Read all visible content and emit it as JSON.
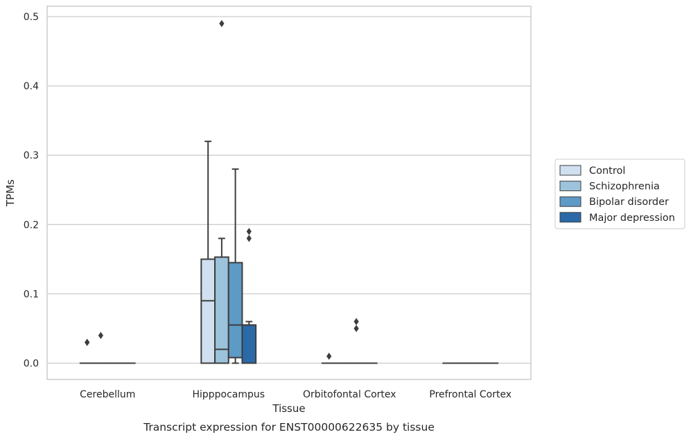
{
  "chart_data": {
    "type": "box",
    "title": "",
    "caption": "Transcript expression for ENST00000622635 by tissue",
    "xlabel": "Tissue",
    "ylabel": "TPMs",
    "ylim": [
      -0.0235,
      0.515
    ],
    "yticks": [
      "0.0",
      "0.1",
      "0.2",
      "0.3",
      "0.4",
      "0.5"
    ],
    "ytick_values": [
      0.0,
      0.1,
      0.2,
      0.3,
      0.4,
      0.5
    ],
    "grid": "horizontal",
    "legend_position": "right",
    "categories": [
      "Cerebellum",
      "Hipppocampus",
      "Orbitofontal Cortex",
      "Prefrontal Cortex"
    ],
    "series": [
      {
        "name": "Control",
        "color": "#d0e0f0",
        "boxes": [
          {
            "q1": 0.0,
            "median": 0.0,
            "q3": 0.0,
            "whisker_low": 0.0,
            "whisker_high": 0.0,
            "outliers": [
              0.03,
              0.03
            ]
          },
          {
            "q1": 0.0,
            "median": 0.09,
            "q3": 0.15,
            "whisker_low": 0.0,
            "whisker_high": 0.32,
            "outliers": []
          },
          {
            "q1": 0.0,
            "median": 0.0,
            "q3": 0.0,
            "whisker_low": 0.0,
            "whisker_high": 0.0,
            "outliers": [
              0.01
            ]
          },
          {
            "q1": 0.0,
            "median": 0.0,
            "q3": 0.0,
            "whisker_low": 0.0,
            "whisker_high": 0.0,
            "outliers": []
          }
        ]
      },
      {
        "name": "Schizophrenia",
        "color": "#9dc3dc",
        "boxes": [
          {
            "q1": 0.0,
            "median": 0.0,
            "q3": 0.0,
            "whisker_low": 0.0,
            "whisker_high": 0.0,
            "outliers": [
              0.04
            ]
          },
          {
            "q1": 0.0,
            "median": 0.02,
            "q3": 0.153,
            "whisker_low": 0.0,
            "whisker_high": 0.18,
            "outliers": [
              0.49
            ]
          },
          {
            "q1": 0.0,
            "median": 0.0,
            "q3": 0.0,
            "whisker_low": 0.0,
            "whisker_high": 0.0,
            "outliers": []
          },
          {
            "q1": 0.0,
            "median": 0.0,
            "q3": 0.0,
            "whisker_low": 0.0,
            "whisker_high": 0.0,
            "outliers": []
          }
        ]
      },
      {
        "name": "Bipolar disorder",
        "color": "#5e9ac6",
        "boxes": [
          {
            "q1": 0.0,
            "median": 0.0,
            "q3": 0.0,
            "whisker_low": 0.0,
            "whisker_high": 0.0,
            "outliers": []
          },
          {
            "q1": 0.008,
            "median": 0.055,
            "q3": 0.145,
            "whisker_low": 0.0,
            "whisker_high": 0.28,
            "outliers": []
          },
          {
            "q1": 0.0,
            "median": 0.0,
            "q3": 0.0,
            "whisker_low": 0.0,
            "whisker_high": 0.0,
            "outliers": [
              0.05,
              0.06
            ]
          },
          {
            "q1": 0.0,
            "median": 0.0,
            "q3": 0.0,
            "whisker_low": 0.0,
            "whisker_high": 0.0,
            "outliers": []
          }
        ]
      },
      {
        "name": "Major depression",
        "color": "#2a6aa8",
        "boxes": [
          {
            "q1": 0.0,
            "median": 0.0,
            "q3": 0.0,
            "whisker_low": 0.0,
            "whisker_high": 0.0,
            "outliers": []
          },
          {
            "q1": 0.0,
            "median": 0.055,
            "q3": 0.055,
            "whisker_low": 0.0,
            "whisker_high": 0.06,
            "outliers": [
              0.18,
              0.19
            ]
          },
          {
            "q1": 0.0,
            "median": 0.0,
            "q3": 0.0,
            "whisker_low": 0.0,
            "whisker_high": 0.0,
            "outliers": []
          },
          {
            "q1": 0.0,
            "median": 0.0,
            "q3": 0.0,
            "whisker_low": 0.0,
            "whisker_high": 0.0,
            "outliers": []
          }
        ]
      }
    ],
    "colors": {
      "edge": "#3d3d3d",
      "grid": "#cccccc",
      "frame": "#cccccc",
      "text": "#262626"
    }
  }
}
